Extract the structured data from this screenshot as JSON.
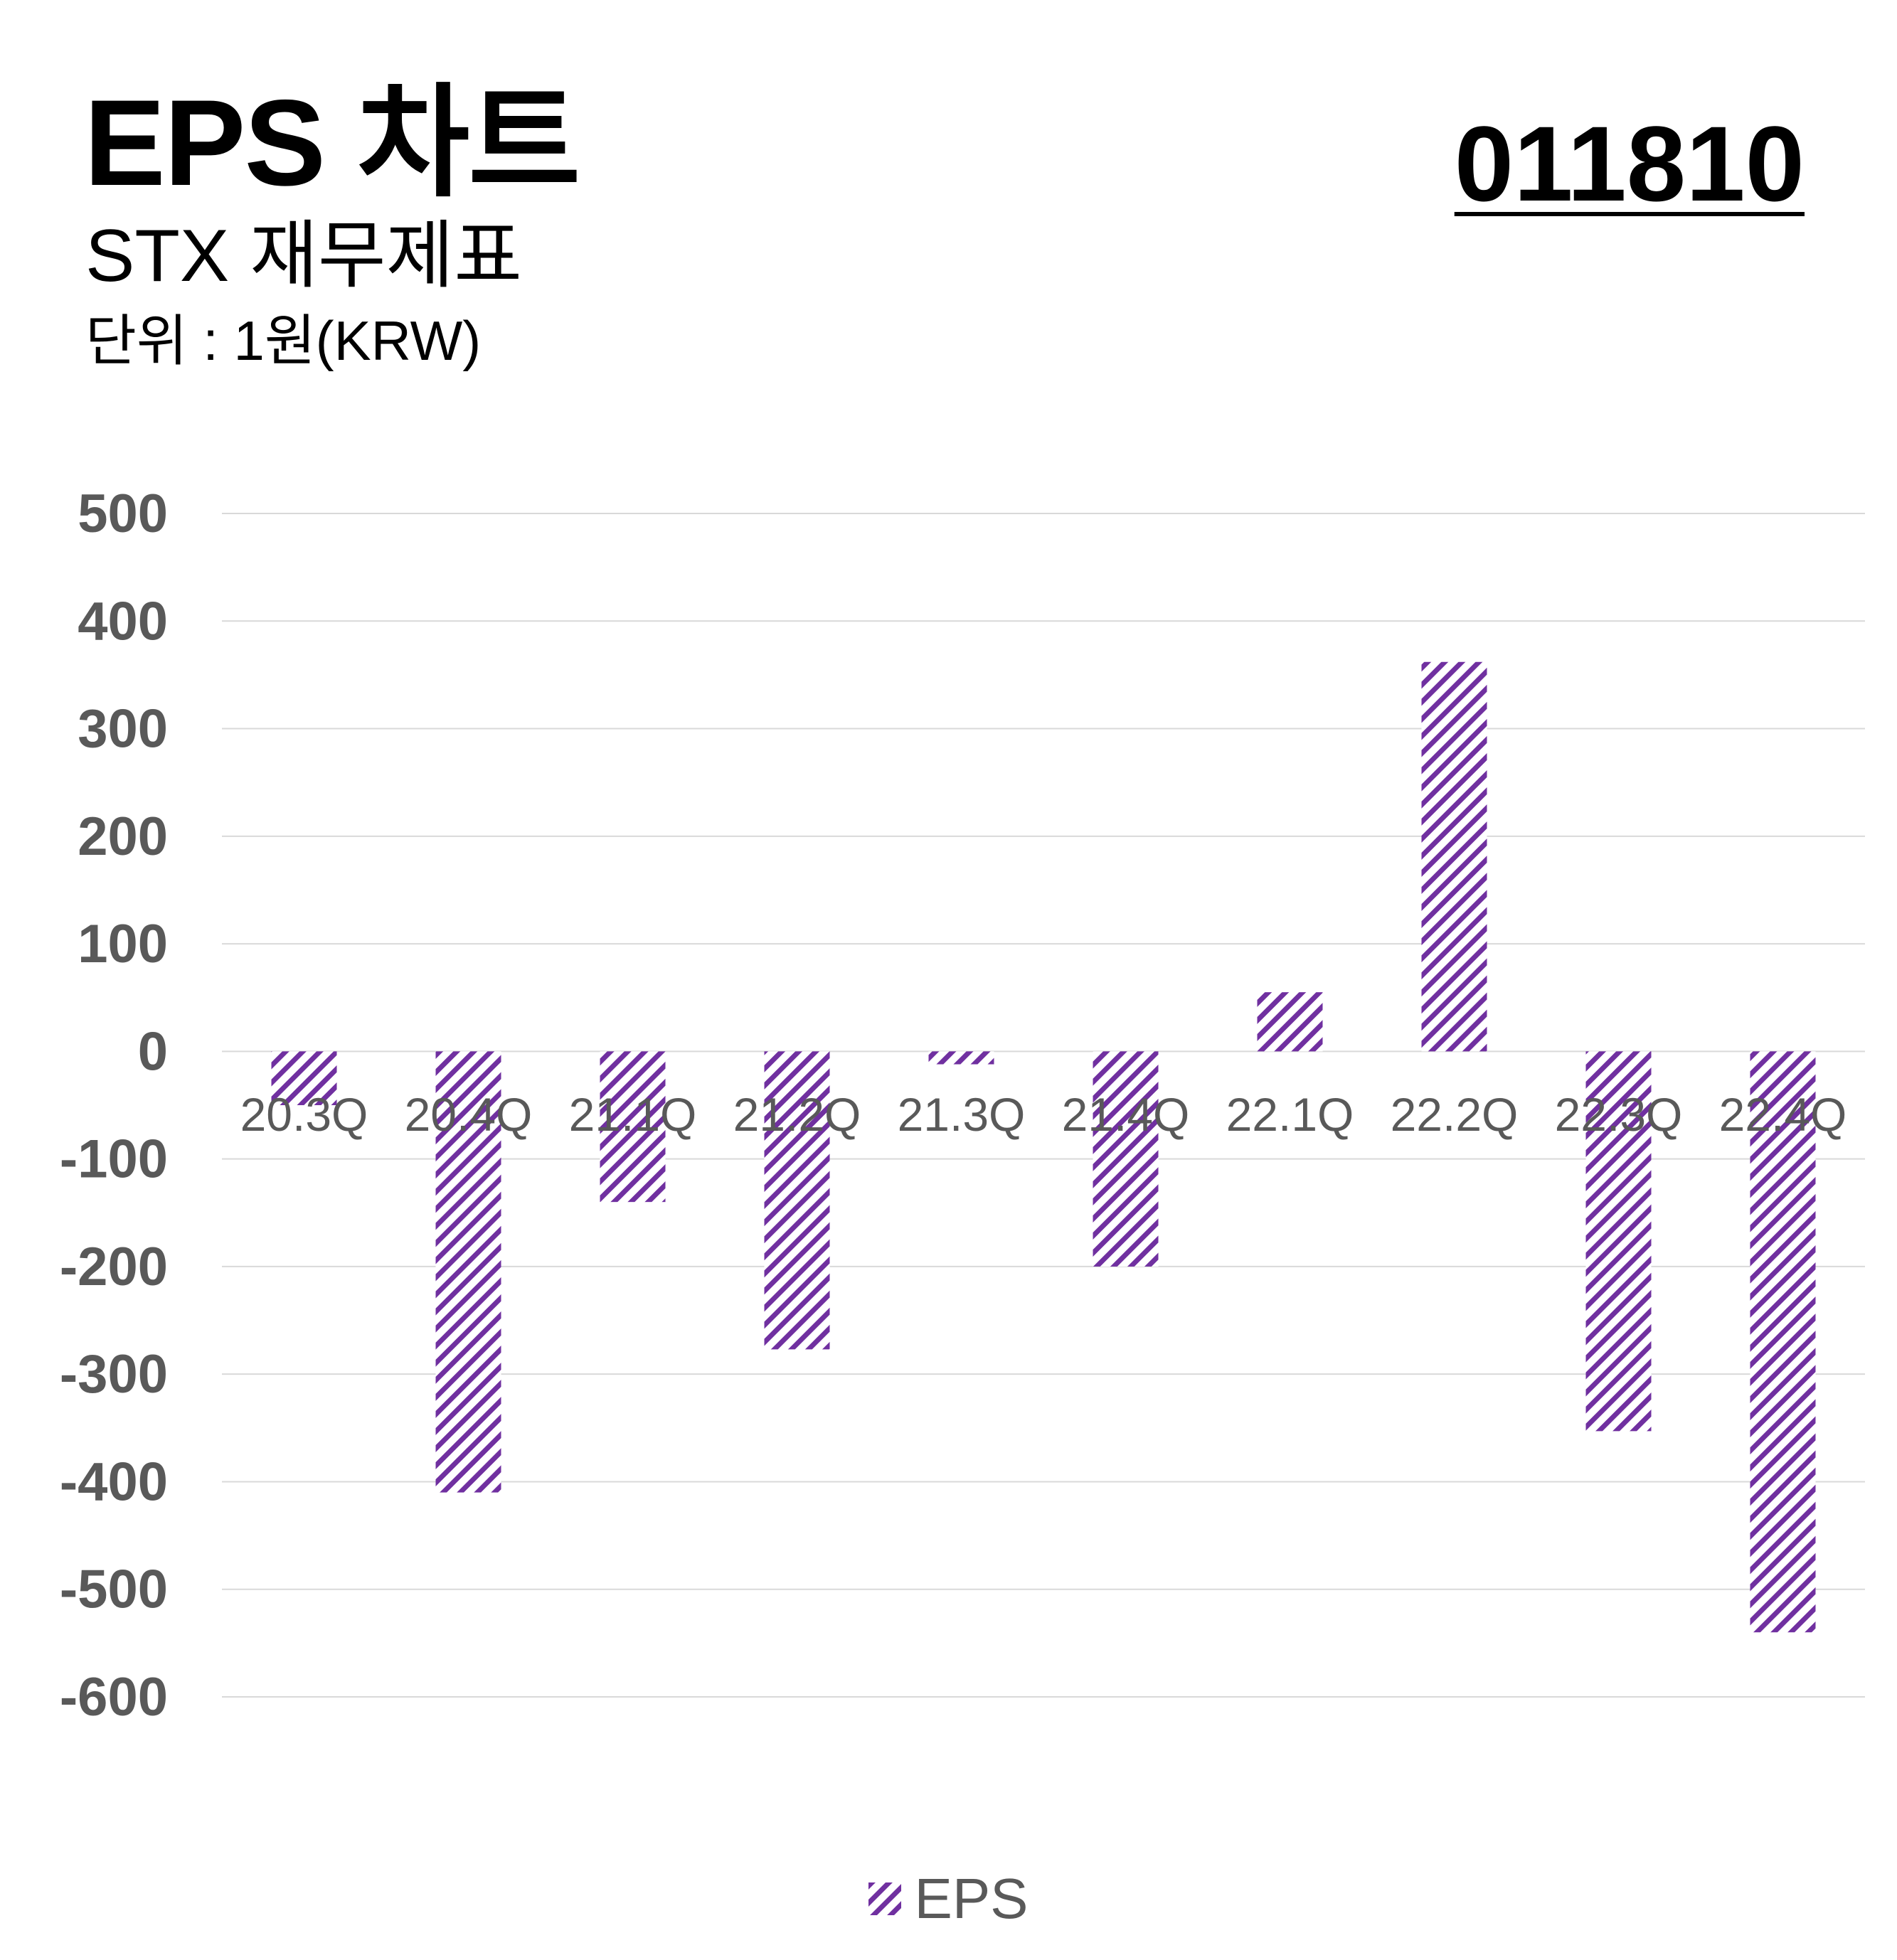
{
  "header": {
    "title": "EPS 차트",
    "subtitle": "STX 재무제표",
    "unit": "단위 : 1원(KRW)",
    "code": "011810"
  },
  "colors": {
    "bar": "#7030a0",
    "grid": "#d9d9d9",
    "tick_text": "#595959"
  },
  "chart_data": {
    "type": "bar",
    "categories": [
      "20.3Q",
      "20.4Q",
      "21.1Q",
      "21.2Q",
      "21.3Q",
      "21.4Q",
      "22.1Q",
      "22.2Q",
      "22.3Q",
      "22.4Q"
    ],
    "series": [
      {
        "name": "EPS",
        "values": [
          -50,
          -410,
          -140,
          -277,
          -12,
          -200,
          55,
          362,
          -353,
          -540
        ],
        "pattern": "diagonal-stripes"
      }
    ],
    "y_ticks": [
      500,
      400,
      300,
      200,
      100,
      0,
      -100,
      -200,
      -300,
      -400,
      -500,
      -600
    ],
    "ylim": [
      -600,
      500
    ],
    "grid": true,
    "legend": "bottom-center",
    "xlabel": "",
    "ylabel": ""
  }
}
